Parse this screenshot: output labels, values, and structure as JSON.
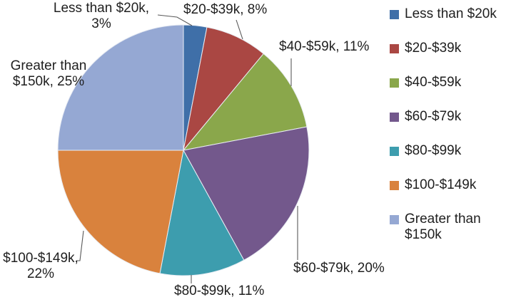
{
  "chart_data": {
    "type": "pie",
    "title": "",
    "legend_position": "right",
    "start_angle": "12-oclock-clockwise",
    "background": "#FFFFFF",
    "slices": [
      {
        "label": "Less than $20k",
        "value": 3,
        "color": "#3F6FA8"
      },
      {
        "label": "$20-$39k",
        "value": 8,
        "color": "#AA4743"
      },
      {
        "label": "$40-$59k",
        "value": 11,
        "color": "#8AA74B"
      },
      {
        "label": "$60-$79k",
        "value": 20,
        "color": "#73588C"
      },
      {
        "label": "$80-$99k",
        "value": 11,
        "color": "#3D9DAE"
      },
      {
        "label": "$100-$149k",
        "value": 22,
        "color": "#D9823D"
      },
      {
        "label": "Greater than $150k",
        "value": 25,
        "color": "#95A8D3"
      }
    ]
  },
  "callouts": {
    "lt20_line1": "Less than $20k,",
    "lt20_line2": "3%",
    "s20_39": "$20-$39k, 8%",
    "s40_59": "$40-$59k, 11%",
    "s60_79": "$60-$79k, 20%",
    "s80_99": "$80-$99k, 11%",
    "s100_149_line1": "$100-$149k,",
    "s100_149_line2": "22%",
    "gt150_line1": "Greater than",
    "gt150_line2": "$150k, 25%"
  },
  "legend": {
    "items": [
      {
        "label": "Less than $20k"
      },
      {
        "label": "$20-$39k"
      },
      {
        "label": "$40-$59k"
      },
      {
        "label": "$60-$79k"
      },
      {
        "label": "$80-$99k"
      },
      {
        "label": "$100-$149k"
      },
      {
        "label": "Greater than $150k"
      }
    ]
  },
  "style": {
    "leader_line_color": "#595959",
    "slice_border_color": "#E9EDF4",
    "text_color": "#1f1f1f"
  }
}
